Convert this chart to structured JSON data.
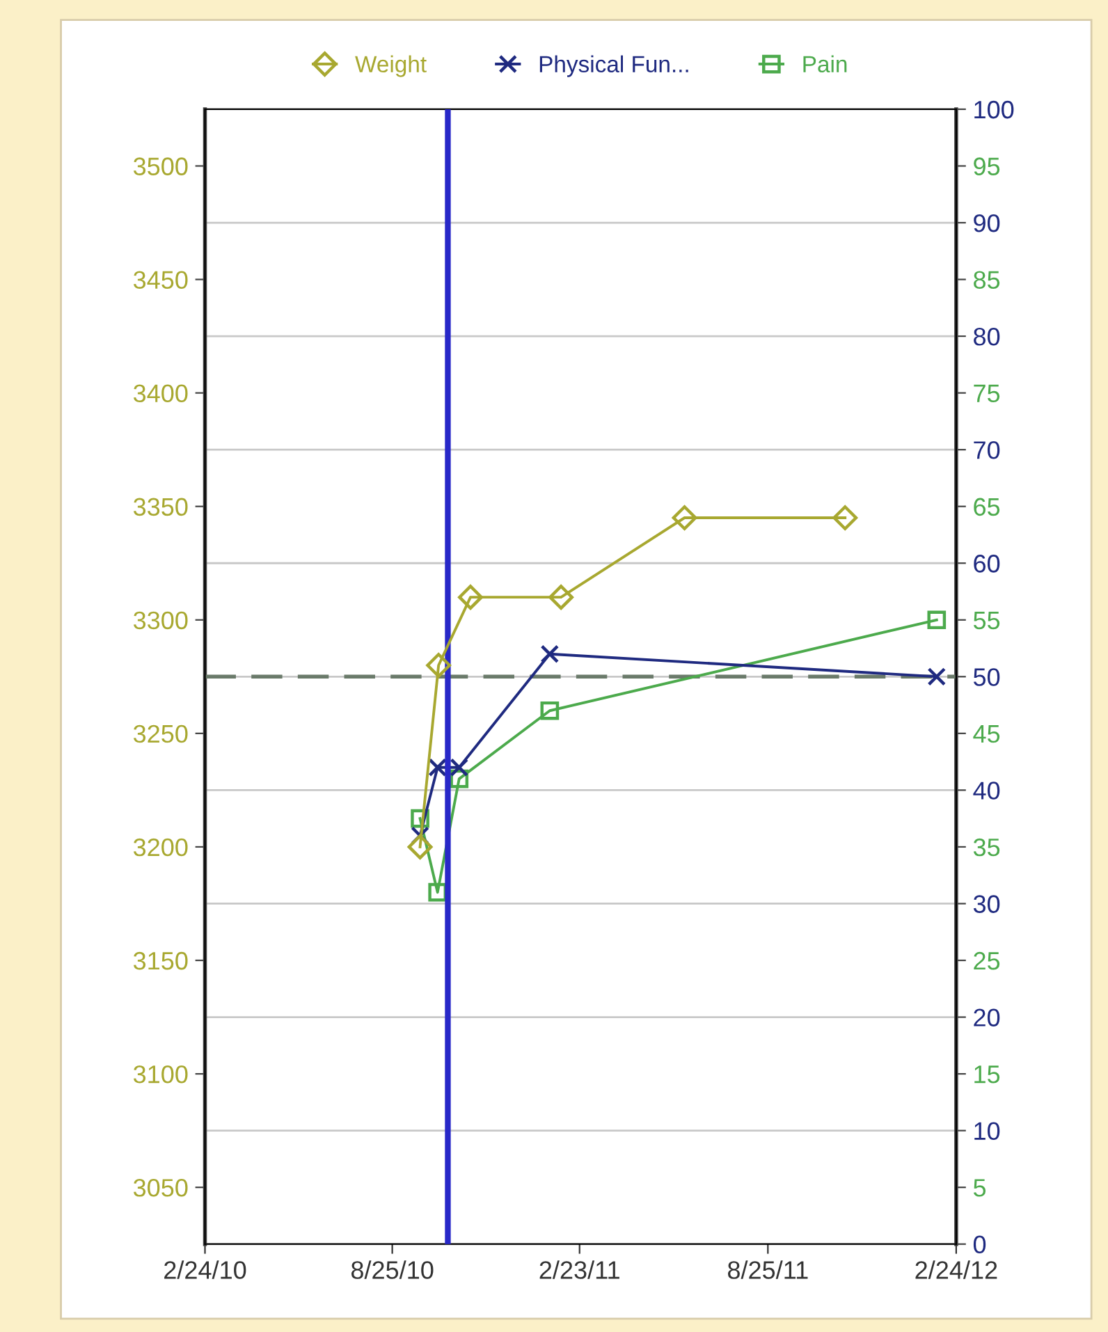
{
  "chart_data": {
    "type": "line",
    "series": [
      {
        "name": "Weight",
        "color": "#a8a830",
        "marker": "diamond",
        "x": [
          "2010-09-21",
          "2010-10-09",
          "2010-11-09",
          "2011-02-05",
          "2011-06-05",
          "2011-11-08"
        ],
        "values": [
          3200,
          3280,
          3310,
          3310,
          3345,
          3345
        ]
      },
      {
        "name": "Physical Fun...",
        "color": "#1f2a80",
        "marker": "cross",
        "axis": "y2",
        "x": [
          "2010-09-21",
          "2010-10-08",
          "2010-10-29",
          "2011-01-25",
          "2012-02-05"
        ],
        "values": [
          36,
          42,
          42,
          52,
          50
        ]
      },
      {
        "name": "Pain",
        "color": "#4caa4c",
        "marker": "square",
        "axis": "y2",
        "x": [
          "2010-09-21",
          "2010-10-08",
          "2010-10-29",
          "2011-01-25",
          "2012-02-05"
        ],
        "values": [
          37.5,
          31,
          41,
          47,
          55
        ]
      }
    ],
    "xlim": [
      "2010-02-24",
      "2012-02-24"
    ],
    "xticks": [
      {
        "value": "2010-02-24",
        "label": "2/24/10"
      },
      {
        "value": "2010-08-25",
        "label": "8/25/10"
      },
      {
        "value": "2011-02-23",
        "label": "2/23/11"
      },
      {
        "value": "2011-08-25",
        "label": "8/25/11"
      },
      {
        "value": "2012-02-24",
        "label": "2/24/12"
      }
    ],
    "ylim": [
      3025,
      3525
    ],
    "yticks": [
      3050,
      3100,
      3150,
      3200,
      3250,
      3300,
      3350,
      3400,
      3450,
      3500
    ],
    "y2lim": [
      0,
      100
    ],
    "y2ticks": [
      0,
      5,
      10,
      15,
      20,
      25,
      30,
      35,
      40,
      45,
      50,
      55,
      60,
      65,
      70,
      75,
      80,
      85,
      90,
      95,
      100
    ],
    "ref_lines": [
      {
        "axis": "x",
        "value": "2010-10-18",
        "color": "#2828c8",
        "line_style": "solid"
      },
      {
        "axis": "y2",
        "value": 50,
        "color": "#6a7a6a",
        "line_style": "dashed"
      }
    ],
    "grid": "y",
    "legend": "top"
  }
}
